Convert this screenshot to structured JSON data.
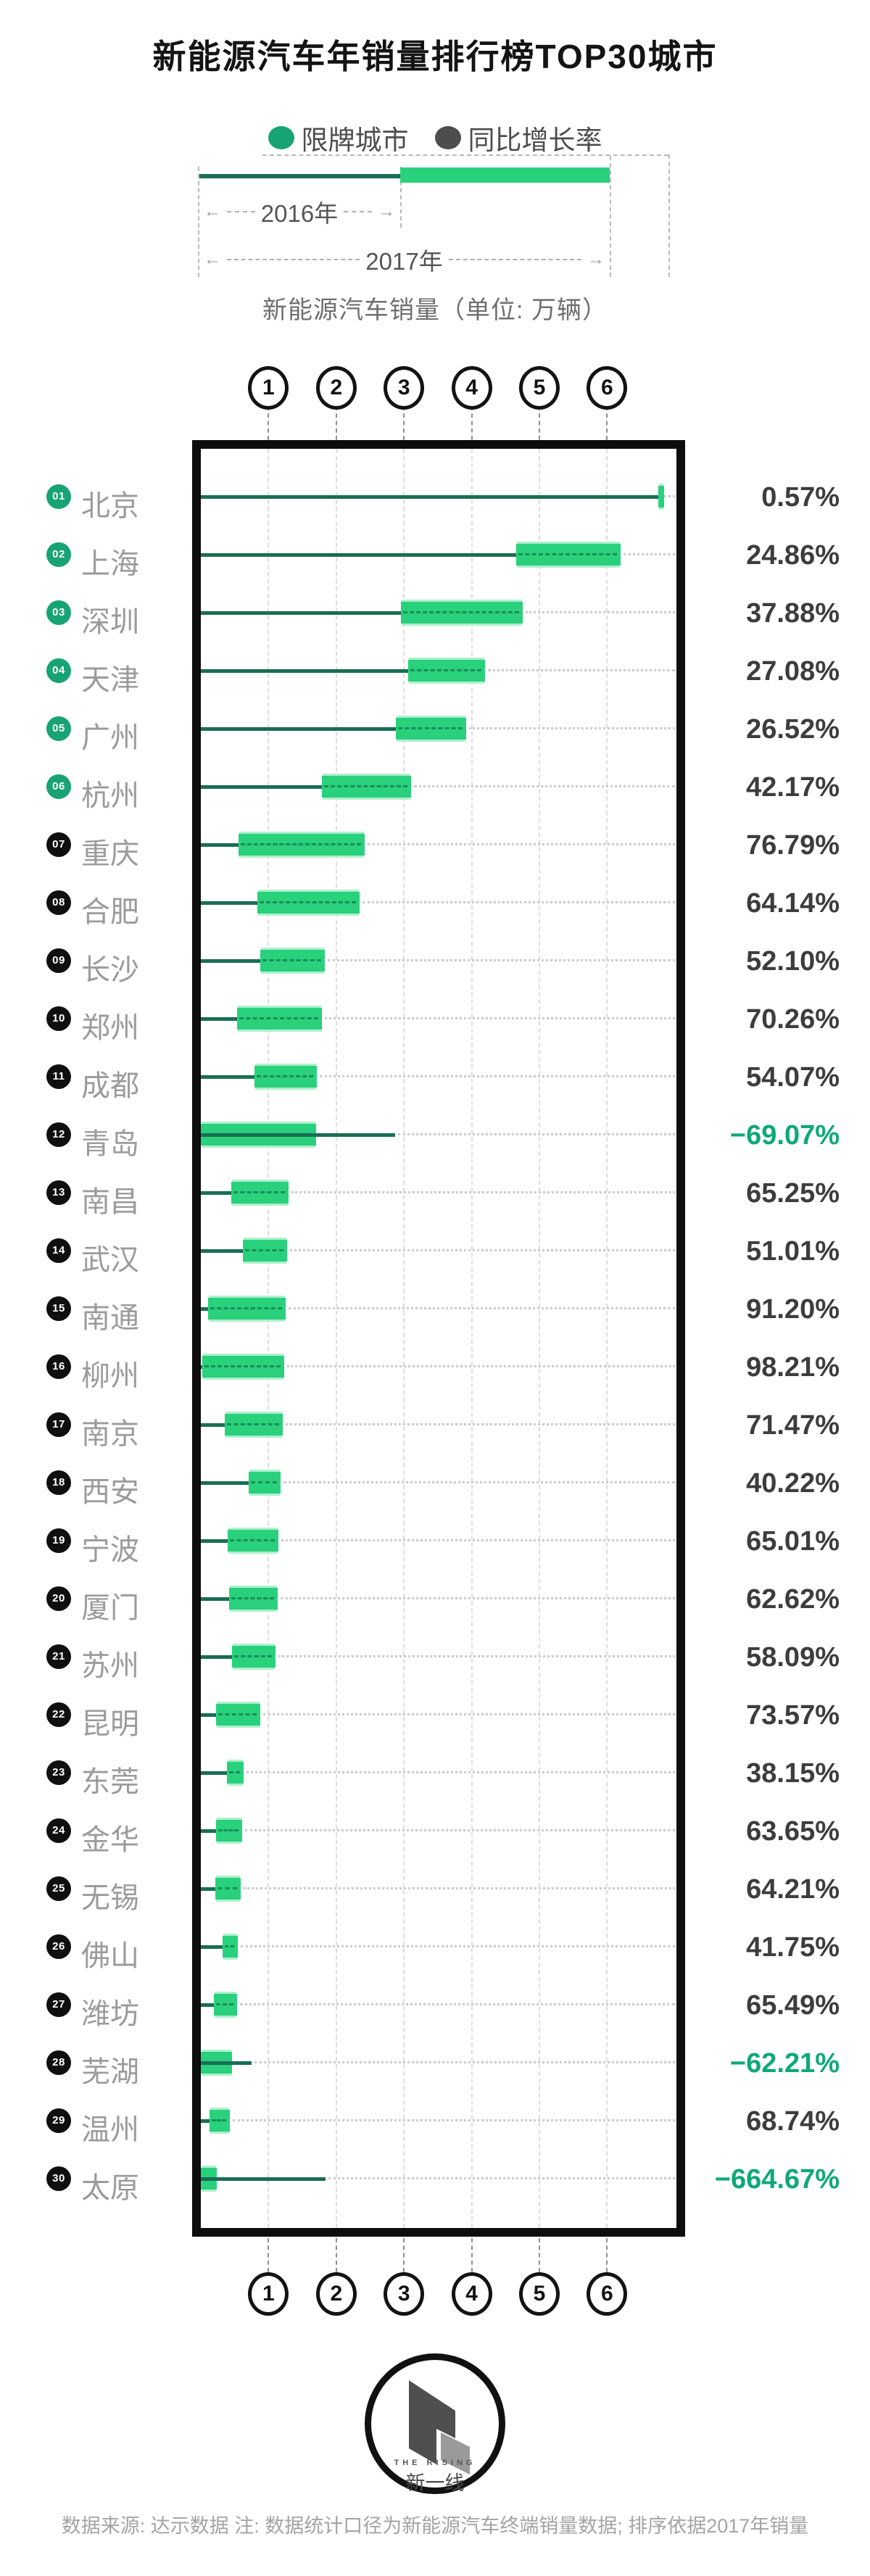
{
  "title": "新能源汽车年销量排行榜TOP30城市",
  "legend": {
    "restricted_label": "限牌城市",
    "growth_label": "同比增长率"
  },
  "explainer": {
    "year_2016_label": "2016年",
    "year_2017_label": "2017年",
    "axis_unit_label": "新能源汽车销量（单位: 万辆）"
  },
  "axis": {
    "ticks": [
      "1",
      "2",
      "3",
      "4",
      "5",
      "6"
    ]
  },
  "colors": {
    "bar_green": "#29d17c",
    "bar_fringe": "#aef0cd",
    "line_teal": "#1a6e55",
    "badge_green": "#17a373",
    "badge_black": "#0f0f0f",
    "negative_pct": "#0fa87b",
    "positive_pct": "#3d3d3d"
  },
  "chart_data": {
    "type": "bar",
    "orientation": "horizontal",
    "title": "新能源汽车年销量排行榜TOP30城市",
    "xlabel": "新能源汽车销量（单位: 万辆）",
    "xlim": [
      0,
      7
    ],
    "grid": "dashed-vertical-at-integers",
    "legend_position": "top-center",
    "categories": [
      "北京",
      "上海",
      "深圳",
      "天津",
      "广州",
      "杭州",
      "重庆",
      "合肥",
      "长沙",
      "郑州",
      "成都",
      "青岛",
      "南昌",
      "武汉",
      "南通",
      "柳州",
      "南京",
      "西安",
      "宁波",
      "厦门",
      "苏州",
      "昆明",
      "东莞",
      "金华",
      "无锡",
      "佛山",
      "潍坊",
      "芜湖",
      "温州",
      "太原"
    ],
    "ranks": [
      "01",
      "02",
      "03",
      "04",
      "05",
      "06",
      "07",
      "08",
      "09",
      "10",
      "11",
      "12",
      "13",
      "14",
      "15",
      "16",
      "17",
      "18",
      "19",
      "20",
      "21",
      "22",
      "23",
      "24",
      "25",
      "26",
      "27",
      "28",
      "29",
      "30"
    ],
    "restricted": [
      true,
      true,
      true,
      true,
      true,
      true,
      false,
      false,
      false,
      false,
      false,
      false,
      false,
      false,
      false,
      false,
      false,
      false,
      false,
      false,
      false,
      false,
      false,
      false,
      false,
      false,
      false,
      false,
      false,
      false
    ],
    "series": [
      {
        "name": "2016年",
        "values": [
          6.76,
          4.66,
          2.95,
          3.06,
          2.88,
          1.79,
          0.56,
          0.84,
          0.88,
          0.53,
          0.79,
          2.87,
          0.45,
          0.62,
          0.11,
          0.02,
          0.35,
          0.71,
          0.4,
          0.42,
          0.46,
          0.23,
          0.39,
          0.22,
          0.21,
          0.32,
          0.19,
          0.75,
          0.13,
          1.84
        ]
      },
      {
        "name": "2017年",
        "values": [
          6.8,
          6.2,
          4.75,
          4.2,
          3.92,
          3.1,
          2.42,
          2.34,
          1.83,
          1.79,
          1.71,
          1.7,
          1.3,
          1.27,
          1.25,
          1.23,
          1.21,
          1.18,
          1.15,
          1.13,
          1.1,
          0.88,
          0.63,
          0.61,
          0.59,
          0.55,
          0.54,
          0.46,
          0.43,
          0.24
        ]
      }
    ],
    "growth_labels": [
      "0.57%",
      "24.86%",
      "37.88%",
      "27.08%",
      "26.52%",
      "42.17%",
      "76.79%",
      "64.14%",
      "52.10%",
      "70.26%",
      "54.07%",
      "-69.07%",
      "65.25%",
      "51.01%",
      "91.20%",
      "98.21%",
      "71.47%",
      "40.22%",
      "65.01%",
      "62.62%",
      "58.09%",
      "73.57%",
      "38.15%",
      "63.65%",
      "64.21%",
      "41.75%",
      "65.49%",
      "-62.21%",
      "68.74%",
      "-664.67%"
    ]
  },
  "logo": {
    "text_en": "THE RISING",
    "text_cn": "新一线"
  },
  "footer_note": "数据来源: 达示数据  注: 数据统计口径为新能源汽车终端销量数据; 排序依据2017年销量"
}
